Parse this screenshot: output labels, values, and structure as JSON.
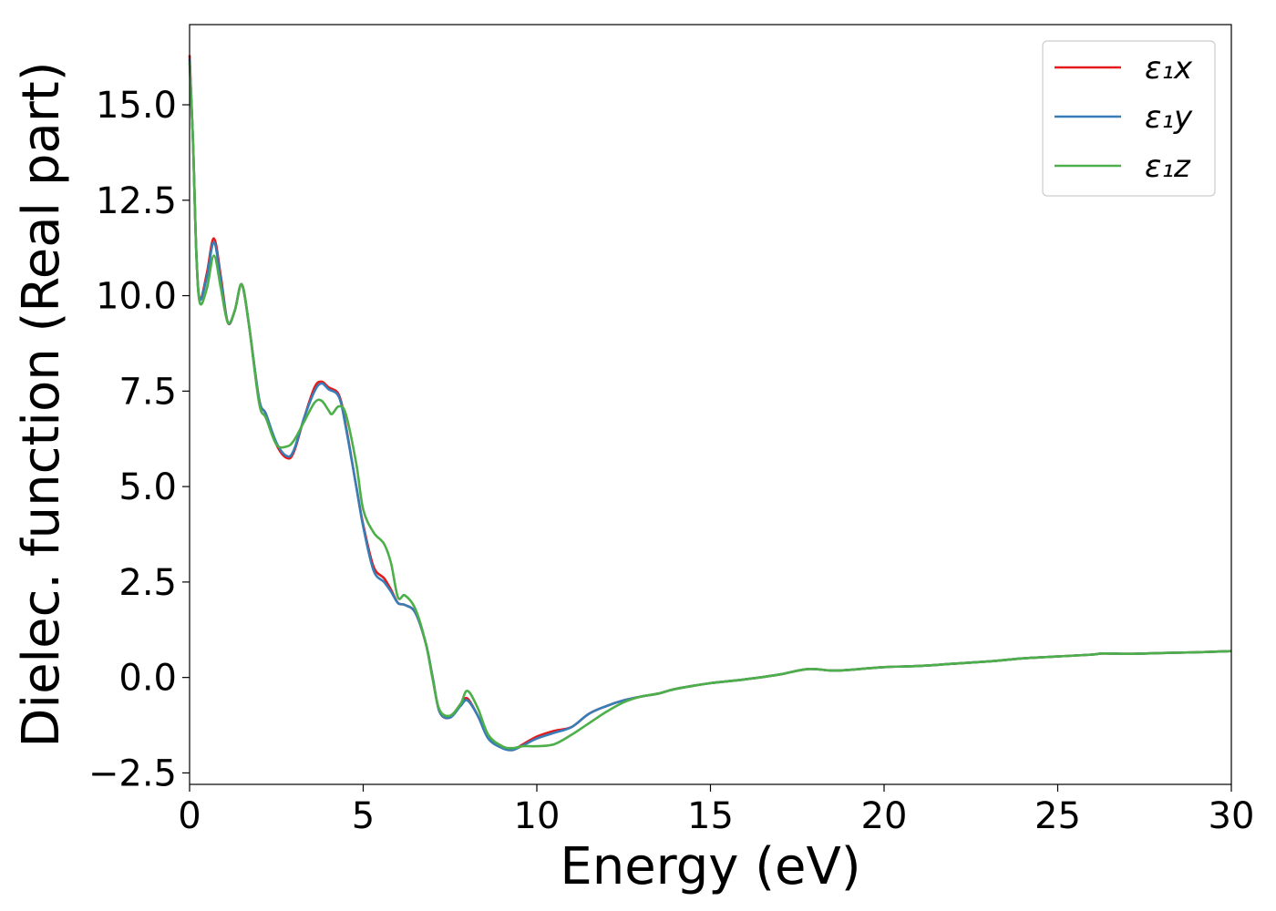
{
  "chart_data": {
    "type": "line",
    "title": "",
    "xlabel": "Energy (eV)",
    "ylabel": "Dielec. function (Real part)",
    "xlim": [
      0,
      30
    ],
    "ylim": [
      -2.8,
      17.1
    ],
    "xticks": [
      0,
      5,
      10,
      15,
      20,
      25,
      30
    ],
    "xtick_labels": [
      "0",
      "5",
      "10",
      "15",
      "20",
      "25",
      "30"
    ],
    "yticks": [
      -2.5,
      0.0,
      2.5,
      5.0,
      7.5,
      10.0,
      12.5,
      15.0
    ],
    "ytick_labels": [
      "−2.5",
      "0.0",
      "2.5",
      "5.0",
      "7.5",
      "10.0",
      "12.5",
      "15.0"
    ],
    "grid": false,
    "legend_position": "top-right",
    "series": [
      {
        "name": "ε₁x",
        "color": "#e41a1c",
        "x": [
          0,
          0.1,
          0.2,
          0.3,
          0.5,
          0.7,
          0.9,
          1.1,
          1.3,
          1.5,
          1.7,
          2.0,
          2.2,
          2.5,
          2.8,
          3.0,
          3.3,
          3.6,
          3.8,
          4.0,
          4.3,
          4.5,
          4.8,
          5.0,
          5.3,
          5.6,
          5.8,
          6.0,
          6.2,
          6.5,
          6.8,
          7.0,
          7.2,
          7.5,
          7.8,
          8.0,
          8.3,
          8.6,
          9.0,
          9.3,
          9.6,
          10.0,
          10.5,
          11.0,
          11.5,
          12.0,
          12.5,
          13.0,
          13.5,
          14.0,
          15.0,
          16.0,
          17.0,
          17.8,
          18.5,
          19.0,
          20.0,
          21.0,
          22.0,
          23.0,
          24.0,
          25.0,
          26.0,
          26.3,
          27.0,
          28.0,
          29.0,
          30.0
        ],
        "y": [
          16.3,
          14.0,
          11.0,
          9.9,
          10.6,
          11.5,
          10.5,
          9.3,
          9.6,
          10.3,
          9.3,
          7.3,
          6.9,
          6.1,
          5.75,
          5.9,
          6.8,
          7.6,
          7.75,
          7.6,
          7.4,
          6.6,
          5.0,
          4.0,
          2.9,
          2.6,
          2.3,
          1.95,
          1.9,
          1.7,
          0.9,
          0.0,
          -0.9,
          -1.05,
          -0.7,
          -0.55,
          -1.0,
          -1.55,
          -1.8,
          -1.9,
          -1.75,
          -1.55,
          -1.4,
          -1.3,
          -0.95,
          -0.75,
          -0.6,
          -0.5,
          -0.42,
          -0.3,
          -0.15,
          -0.05,
          0.08,
          0.22,
          0.18,
          0.2,
          0.27,
          0.3,
          0.36,
          0.42,
          0.5,
          0.55,
          0.6,
          0.63,
          0.62,
          0.64,
          0.66,
          0.69
        ]
      },
      {
        "name": "ε₁y",
        "color": "#377eb8",
        "x": [
          0,
          0.1,
          0.2,
          0.3,
          0.5,
          0.7,
          0.9,
          1.1,
          1.3,
          1.5,
          1.7,
          2.0,
          2.2,
          2.5,
          2.8,
          3.0,
          3.3,
          3.6,
          3.8,
          4.0,
          4.3,
          4.5,
          4.8,
          5.0,
          5.3,
          5.6,
          5.8,
          6.0,
          6.2,
          6.5,
          6.8,
          7.0,
          7.2,
          7.5,
          7.8,
          8.0,
          8.3,
          8.6,
          9.0,
          9.3,
          9.6,
          10.0,
          10.5,
          11.0,
          11.5,
          12.0,
          12.5,
          13.0,
          13.5,
          14.0,
          15.0,
          16.0,
          17.0,
          17.8,
          18.5,
          19.0,
          20.0,
          21.0,
          22.0,
          23.0,
          24.0,
          25.0,
          26.0,
          26.3,
          27.0,
          28.0,
          29.0,
          30.0
        ],
        "y": [
          16.2,
          14.0,
          11.0,
          9.9,
          10.5,
          11.4,
          10.4,
          9.3,
          9.6,
          10.3,
          9.3,
          7.3,
          6.9,
          6.15,
          5.8,
          5.95,
          6.8,
          7.5,
          7.7,
          7.55,
          7.35,
          6.55,
          5.0,
          3.95,
          2.8,
          2.5,
          2.25,
          1.95,
          1.9,
          1.7,
          0.9,
          0.0,
          -0.9,
          -1.05,
          -0.75,
          -0.6,
          -1.0,
          -1.6,
          -1.85,
          -1.9,
          -1.78,
          -1.6,
          -1.45,
          -1.3,
          -0.95,
          -0.75,
          -0.6,
          -0.5,
          -0.42,
          -0.3,
          -0.15,
          -0.05,
          0.08,
          0.22,
          0.18,
          0.2,
          0.27,
          0.3,
          0.36,
          0.42,
          0.5,
          0.55,
          0.6,
          0.63,
          0.62,
          0.64,
          0.66,
          0.69
        ]
      },
      {
        "name": "ε₁z",
        "color": "#4daf4a",
        "x": [
          0,
          0.1,
          0.2,
          0.3,
          0.5,
          0.7,
          0.9,
          1.1,
          1.3,
          1.5,
          1.7,
          2.0,
          2.2,
          2.5,
          2.8,
          3.0,
          3.3,
          3.6,
          3.8,
          4.0,
          4.1,
          4.3,
          4.5,
          4.8,
          5.0,
          5.3,
          5.6,
          5.8,
          6.0,
          6.2,
          6.5,
          6.8,
          7.0,
          7.2,
          7.5,
          7.8,
          8.0,
          8.3,
          8.6,
          9.0,
          9.3,
          9.6,
          10.0,
          10.5,
          11.0,
          11.5,
          12.0,
          12.5,
          13.0,
          13.5,
          14.0,
          15.0,
          16.0,
          17.0,
          17.8,
          18.5,
          19.0,
          20.0,
          21.0,
          22.0,
          23.0,
          24.0,
          25.0,
          26.0,
          26.3,
          27.0,
          28.0,
          29.0,
          30.0
        ],
        "y": [
          16.1,
          14.0,
          11.0,
          9.8,
          10.2,
          11.05,
          10.2,
          9.3,
          9.6,
          10.3,
          9.3,
          7.2,
          6.8,
          6.1,
          6.05,
          6.2,
          6.7,
          7.2,
          7.25,
          7.0,
          6.9,
          7.1,
          6.9,
          5.6,
          4.4,
          3.8,
          3.5,
          3.0,
          2.1,
          2.15,
          1.8,
          0.9,
          -0.05,
          -0.85,
          -1.0,
          -0.7,
          -0.35,
          -0.8,
          -1.5,
          -1.8,
          -1.85,
          -1.8,
          -1.8,
          -1.75,
          -1.5,
          -1.2,
          -0.9,
          -0.65,
          -0.5,
          -0.42,
          -0.3,
          -0.15,
          -0.05,
          0.08,
          0.22,
          0.18,
          0.2,
          0.27,
          0.3,
          0.36,
          0.42,
          0.5,
          0.55,
          0.6,
          0.63,
          0.62,
          0.64,
          0.66,
          0.69
        ]
      }
    ]
  }
}
